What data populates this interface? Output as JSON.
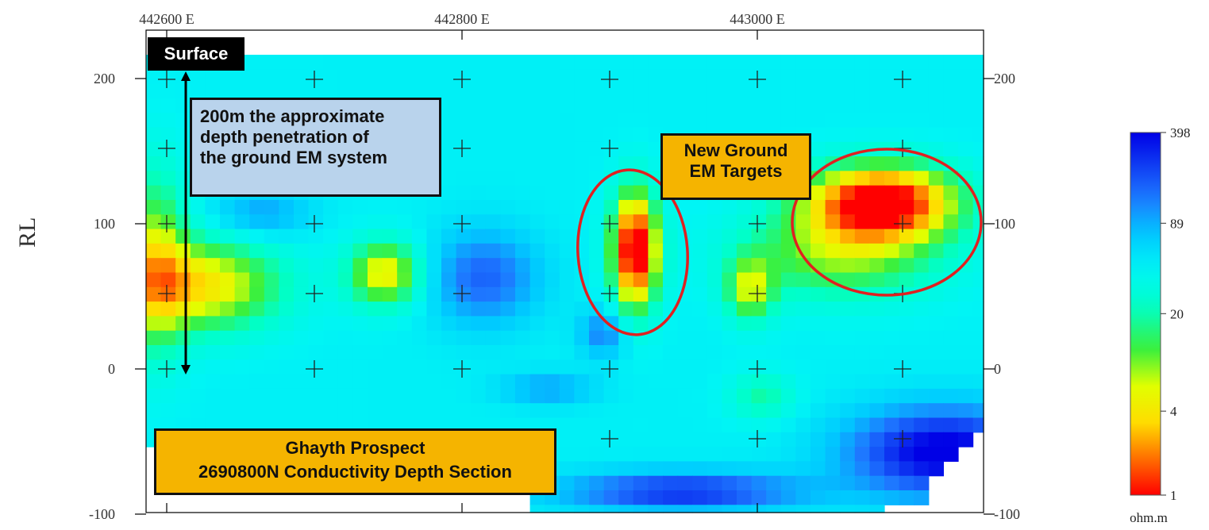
{
  "chart_data": {
    "type": "heatmap",
    "title": "",
    "xlabel": "",
    "ylabel": "RL",
    "x_ticks": [
      "442600 E",
      "442800 E",
      "443000 E"
    ],
    "x_tick_values": [
      442600,
      442800,
      443000
    ],
    "xlim": [
      442585,
      443150
    ],
    "y_ticks": [
      "200",
      "100",
      "0",
      "-100"
    ],
    "y_tick_values": [
      200,
      100,
      0,
      -100
    ],
    "ylim": [
      -100,
      215
    ],
    "colorbar": {
      "label": "ohm.m",
      "tick_labels": [
        "398",
        "89",
        "20",
        "4",
        "1"
      ],
      "scale": "log",
      "range": [
        1,
        398
      ]
    },
    "anomalies": [
      {
        "label": "New Ground EM Targets",
        "x": 442920,
        "rl": 75,
        "min_resistivity_ohm_m": 1
      },
      {
        "label": "New Ground EM Targets",
        "x": 443080,
        "rl": 105,
        "min_resistivity_ohm_m": 1
      }
    ],
    "grid_markers": "cross"
  },
  "annotations": {
    "surface": "Surface",
    "depth_note": [
      "200m the approximate",
      "depth penetration of",
      "the ground EM system"
    ],
    "targets": [
      "New Ground",
      "EM Targets"
    ],
    "prospect": [
      "Ghayth Prospect",
      "2690800N Conductivity Depth Section"
    ]
  },
  "colors": {
    "low_resistivity": "#ff0000",
    "mid": "#ffff00",
    "background": "#00ffff",
    "high_resistivity": "#0000ff",
    "target_ellipse": "#e02020"
  }
}
